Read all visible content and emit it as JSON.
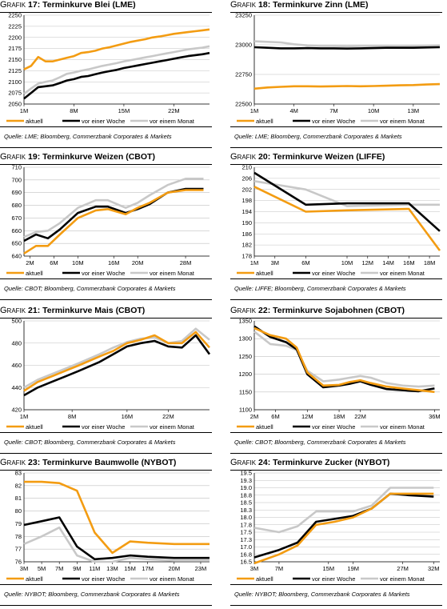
{
  "colors": {
    "aktuell": "#f39c12",
    "woche": "#000000",
    "monat": "#c8c8c8",
    "grid": "#c0c0c0"
  },
  "chart_data": [
    {
      "type": "line",
      "label": "Grafik",
      "number": "17:",
      "title": "Terminkurve Blei (LME)",
      "source": "Quelle: LME; Bloomberg, Commerzbank Corporates & Markets",
      "ylim": [
        2050,
        2250
      ],
      "yticks": [
        2050,
        2075,
        2100,
        2125,
        2150,
        2175,
        2200,
        2225,
        2250
      ],
      "xlim": [
        1,
        27
      ],
      "xticks": [
        1,
        8,
        15,
        22
      ],
      "xticklabels": [
        "1M",
        "8M",
        "15M",
        "22M"
      ],
      "x": [
        1,
        2,
        3,
        4,
        5,
        6,
        7,
        8,
        9,
        10,
        11,
        12,
        13,
        14,
        15,
        16,
        17,
        18,
        19,
        20,
        21,
        22,
        23,
        24,
        25,
        26,
        27
      ],
      "series": [
        {
          "name": "aktuell",
          "values": [
            2128,
            2136,
            2156,
            2146,
            2146,
            2150,
            2154,
            2158,
            2165,
            2167,
            2170,
            2175,
            2178,
            2182,
            2186,
            2190,
            2193,
            2196,
            2200,
            2202,
            2205,
            2208,
            2210,
            2212,
            2214,
            2216,
            2218
          ]
        },
        {
          "name": "vor einer Woche",
          "values": [
            2062,
            2075,
            2088,
            2090,
            2092,
            2097,
            2103,
            2106,
            2111,
            2113,
            2117,
            2121,
            2124,
            2127,
            2131,
            2134,
            2137,
            2140,
            2143,
            2146,
            2149,
            2152,
            2155,
            2158,
            2160,
            2162,
            2165
          ]
        },
        {
          "name": "vor einem Monat",
          "values": [
            2073,
            2085,
            2096,
            2100,
            2103,
            2110,
            2118,
            2121,
            2125,
            2128,
            2132,
            2136,
            2139,
            2142,
            2146,
            2149,
            2152,
            2155,
            2158,
            2161,
            2164,
            2167,
            2170,
            2173,
            2175,
            2177,
            2180
          ]
        }
      ],
      "legend": [
        "aktuell",
        "vor einer Woche",
        "vor einem Monat"
      ]
    },
    {
      "type": "line",
      "label": "Grafik",
      "number": "18:",
      "title": "Terminkurve Zinn (LME)",
      "source": "Quelle: LME; Bloomberg, Commerzbank Corporates & Markets",
      "ylim": [
        22500,
        23250
      ],
      "yticks": [
        22500,
        22750,
        23000,
        23250
      ],
      "xlim": [
        1,
        15
      ],
      "xticks": [
        1,
        4,
        7,
        10,
        13
      ],
      "xticklabels": [
        "1M",
        "4M",
        "7M",
        "10M",
        "13M"
      ],
      "x": [
        1,
        2,
        3,
        4,
        5,
        6,
        7,
        8,
        9,
        10,
        11,
        12,
        13,
        14,
        15
      ],
      "series": [
        {
          "name": "aktuell",
          "values": [
            22630,
            22640,
            22645,
            22650,
            22650,
            22648,
            22650,
            22652,
            22650,
            22652,
            22655,
            22658,
            22660,
            22665,
            22668
          ]
        },
        {
          "name": "vor einer Woche",
          "values": [
            22980,
            22975,
            22970,
            22970,
            22972,
            22970,
            22970,
            22968,
            22970,
            22972,
            22975,
            22975,
            22975,
            22978,
            22980
          ]
        },
        {
          "name": "vor einem Monat",
          "values": [
            23030,
            23025,
            23020,
            23005,
            22995,
            22990,
            22990,
            22988,
            22990,
            22990,
            22990,
            22988,
            22990,
            22992,
            22995
          ]
        }
      ],
      "legend": [
        "aktuell",
        "vor einer Woche",
        "vor einem Monat"
      ]
    },
    {
      "type": "line",
      "label": "Grafik",
      "number": "19:",
      "title": "Terminkurve Weizen (CBOT)",
      "source": "Quelle: CBOT; Bloomberg, Commerzbank Corporates & Markets",
      "ylim": [
        640,
        710
      ],
      "yticks": [
        640,
        650,
        660,
        670,
        680,
        690,
        700,
        710
      ],
      "xlim": [
        1,
        32
      ],
      "xticks": [
        2,
        6,
        10,
        16,
        20,
        28
      ],
      "xticklabels": [
        "2M",
        "6M",
        "10M",
        "16M",
        "20M",
        "28M"
      ],
      "x": [
        1,
        3,
        5,
        7,
        10,
        13,
        15,
        18,
        20,
        22,
        25,
        28,
        31
      ],
      "series": [
        {
          "name": "aktuell",
          "values": [
            642,
            648,
            648,
            657,
            670,
            676,
            677,
            673,
            678,
            682,
            690,
            692,
            692
          ]
        },
        {
          "name": "vor einer Woche",
          "values": [
            652,
            657,
            654,
            661,
            674,
            679,
            679,
            674,
            677,
            681,
            690,
            693,
            693
          ]
        },
        {
          "name": "vor einem Monat",
          "values": [
            655,
            659,
            660,
            666,
            678,
            684,
            684,
            678,
            682,
            688,
            696,
            701,
            701
          ]
        }
      ],
      "legend": [
        "aktuell",
        "vor einer Woche",
        "vor einem Monat"
      ]
    },
    {
      "type": "line",
      "label": "Grafik",
      "number": "20:",
      "title": "Terminkurve Weizen (LIFFE)",
      "source": "Quelle: LIFFE; Bloomberg, Commerzbank Corporates & Markets",
      "ylim": [
        178,
        210
      ],
      "yticks": [
        178,
        182,
        186,
        190,
        194,
        198,
        202,
        206,
        210
      ],
      "xlim": [
        1,
        19
      ],
      "xticks": [
        1,
        3,
        6,
        10,
        12,
        14,
        16,
        18
      ],
      "xticklabels": [
        "1M",
        "3M",
        "6M",
        "10M",
        "12M",
        "14M",
        "16M",
        "18M"
      ],
      "x": [
        1,
        6,
        10,
        16,
        19
      ],
      "series": [
        {
          "name": "aktuell",
          "values": [
            203,
            194,
            194.5,
            195,
            180
          ]
        },
        {
          "name": "vor einer Woche",
          "values": [
            208,
            196.5,
            197,
            197,
            187
          ]
        },
        {
          "name": "vor einem Monat",
          "values": [
            205,
            202,
            196,
            196.5,
            196.5
          ]
        }
      ],
      "legend": [
        "aktuell",
        "vor einer Woche",
        "vor einem Monat"
      ]
    },
    {
      "type": "line",
      "label": "Grafik",
      "number": "21:",
      "title": "Terminkurve Mais (CBOT)",
      "source": "Quelle: CBOT; Bloomberg, Commerzbank Corporates & Markets",
      "ylim": [
        420,
        500
      ],
      "yticks": [
        420,
        440,
        460,
        480,
        500
      ],
      "xlim": [
        1,
        28
      ],
      "xticks": [
        1,
        8,
        16,
        22
      ],
      "xticklabels": [
        "1M",
        "8M",
        "16M",
        "22M"
      ],
      "x": [
        1,
        3,
        5,
        7,
        9,
        12,
        14,
        16,
        18,
        20,
        22,
        24,
        26,
        28
      ],
      "series": [
        {
          "name": "aktuell",
          "values": [
            437,
            445,
            450,
            455,
            460,
            468,
            473,
            480,
            483,
            487,
            480,
            480,
            490,
            476
          ]
        },
        {
          "name": "vor einer Woche",
          "values": [
            433,
            440,
            445,
            450,
            455,
            463,
            470,
            477,
            480,
            482,
            477,
            476,
            487,
            470
          ]
        },
        {
          "name": "vor einem Monat",
          "values": [
            440,
            447,
            452,
            457,
            462,
            470,
            476,
            481,
            484,
            485,
            480,
            482,
            493,
            483
          ]
        }
      ],
      "legend": [
        "aktuell",
        "vor einer Woche",
        "vor einem Monat"
      ]
    },
    {
      "type": "line",
      "label": "Grafik",
      "number": "22:",
      "title": "Terminkurve Sojabohnen (CBOT)",
      "source": "Quelle: CBOT; Bloomberg, Commerzbank Corporates & Markets",
      "ylim": [
        1100,
        1350
      ],
      "yticks": [
        1100,
        1150,
        1200,
        1250,
        1300,
        1350
      ],
      "xlim": [
        2,
        37
      ],
      "xticks": [
        2,
        6,
        12,
        18,
        22,
        36
      ],
      "xticklabels": [
        "2M",
        "6M",
        "12M",
        "18M",
        "22M",
        "36M"
      ],
      "x": [
        2,
        5,
        8,
        10,
        12,
        15,
        18,
        20,
        22,
        24,
        27,
        30,
        33,
        36
      ],
      "series": [
        {
          "name": "aktuell",
          "values": [
            1330,
            1310,
            1300,
            1275,
            1205,
            1168,
            1170,
            1178,
            1183,
            1175,
            1165,
            1160,
            1155,
            1150
          ]
        },
        {
          "name": "vor einer Woche",
          "values": [
            1335,
            1305,
            1290,
            1270,
            1200,
            1163,
            1168,
            1173,
            1180,
            1170,
            1158,
            1155,
            1152,
            1160
          ]
        },
        {
          "name": "vor einem Monat",
          "values": [
            1320,
            1285,
            1280,
            1268,
            1210,
            1180,
            1185,
            1190,
            1195,
            1190,
            1175,
            1168,
            1165,
            1168
          ]
        }
      ],
      "legend": [
        "aktuell",
        "vor einer Woche",
        "vor einem Monat"
      ]
    },
    {
      "type": "line",
      "label": "Grafik",
      "number": "23:",
      "title": "Terminkurve Baumwolle (NYBOT)",
      "source": "Quelle: NYBOT; Bloomberg, Commerzbank Corporates & Markets",
      "ylim": [
        76,
        83
      ],
      "yticks": [
        76,
        77,
        78,
        79,
        80,
        81,
        82,
        83
      ],
      "xlim": [
        3,
        24
      ],
      "xticks": [
        3,
        5,
        7,
        9,
        11,
        13,
        15,
        17,
        20,
        23
      ],
      "xticklabels": [
        "3M",
        "5M",
        "7M",
        "9M",
        "11M",
        "13M",
        "15M",
        "17M",
        "20M",
        "23M"
      ],
      "x": [
        3,
        5,
        7,
        9,
        11,
        13,
        15,
        17,
        20,
        23,
        24
      ],
      "series": [
        {
          "name": "aktuell",
          "values": [
            82.3,
            82.3,
            82.2,
            81.6,
            78.3,
            76.7,
            77.6,
            77.5,
            77.4,
            77.4,
            77.4
          ]
        },
        {
          "name": "vor einer Woche",
          "values": [
            78.9,
            79.2,
            79.5,
            77.2,
            76.2,
            76.3,
            76.5,
            76.4,
            76.3,
            76.3,
            76.3
          ]
        },
        {
          "name": "vor einem Monat",
          "values": [
            77.4,
            78.0,
            78.7,
            76.5,
            76.0,
            76.0,
            76.3,
            76.2,
            76.1,
            76.1,
            76.1
          ]
        }
      ],
      "legend": [
        "aktuell",
        "vor einer Woche",
        "vor einem Monat"
      ]
    },
    {
      "type": "line",
      "label": "Grafik",
      "number": "24:",
      "title": "Terminkurve Zucker (NYBOT)",
      "source": "Quelle: NYBOT; Bloomberg, Commerzbank Corporates & Markets",
      "ylim": [
        16.5,
        19.5
      ],
      "yticks": [
        16.5,
        16.75,
        17.0,
        17.25,
        17.5,
        17.75,
        18.0,
        18.25,
        18.5,
        18.75,
        19.0,
        19.25,
        19.5
      ],
      "yticklabels": [
        "16.5",
        "16.8",
        "17.0",
        "17.3",
        "17.5",
        "17.8",
        "18.0",
        "18.3",
        "18.5",
        "18.8",
        "19.0",
        "19.3",
        "19.5"
      ],
      "xlim": [
        3,
        33
      ],
      "xticks": [
        3,
        7,
        15,
        19,
        27,
        32
      ],
      "xticklabels": [
        "3M",
        "7M",
        "15M",
        "19M",
        "27M",
        "32M"
      ],
      "x": [
        3,
        7,
        10,
        13,
        16,
        19,
        22,
        25,
        28,
        32
      ],
      "series": [
        {
          "name": "aktuell",
          "values": [
            16.45,
            16.75,
            17.05,
            17.75,
            17.85,
            18.0,
            18.3,
            18.8,
            18.8,
            18.8
          ]
        },
        {
          "name": "vor einer Woche",
          "values": [
            16.65,
            16.9,
            17.15,
            17.85,
            17.95,
            18.05,
            18.3,
            18.8,
            18.75,
            18.7
          ]
        },
        {
          "name": "vor einem Monat",
          "values": [
            17.65,
            17.5,
            17.7,
            18.2,
            18.2,
            18.2,
            18.4,
            19.0,
            19.0,
            19.0
          ]
        }
      ],
      "legend": [
        "aktuell",
        "vor einer Woche",
        "vor einem Monat"
      ]
    }
  ]
}
